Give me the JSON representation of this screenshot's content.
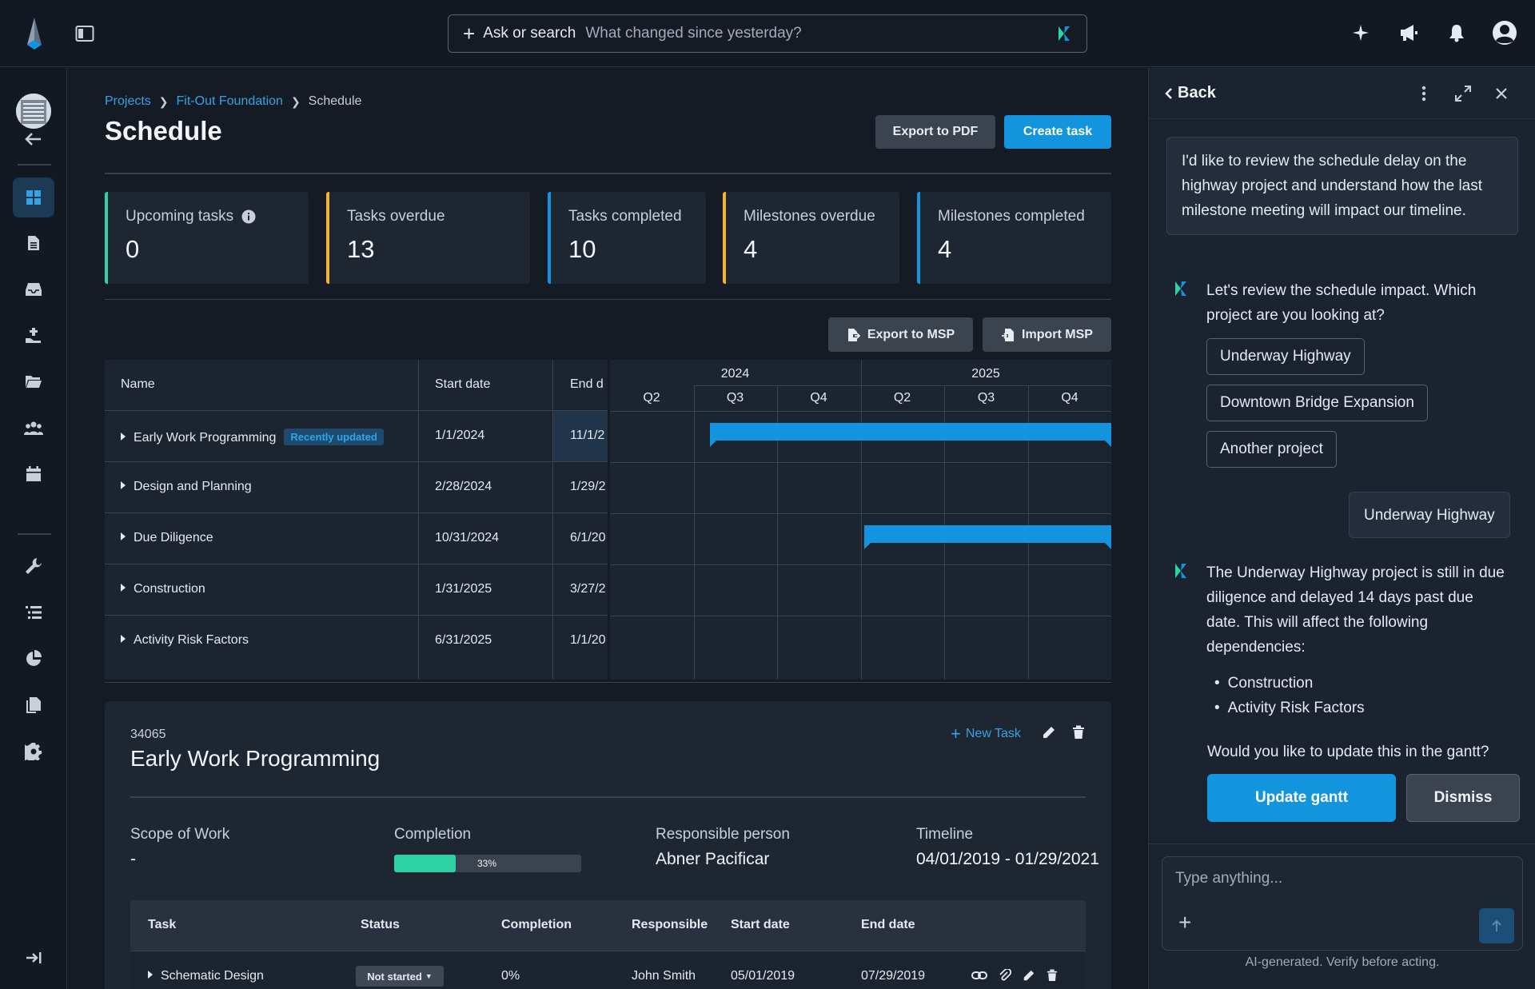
{
  "search": {
    "label": "Ask or search",
    "placeholder": "What changed since yesterday?"
  },
  "top_icons": [
    "sparkle-icon",
    "megaphone-icon",
    "bell-icon",
    "user-avatar-icon"
  ],
  "rail": {
    "items": [
      "back-arrow-icon",
      "dashboard-icon",
      "document-icon",
      "inbox-icon",
      "money-icon",
      "folder-icon",
      "team-icon",
      "calendar-icon",
      "wrench-icon",
      "list-icon",
      "pie-chart-icon",
      "files-icon",
      "gear-icon",
      "collapse-icon"
    ]
  },
  "breadcrumb": {
    "items": [
      "Projects",
      "Fit-Out Foundation"
    ],
    "current": "Schedule"
  },
  "page": {
    "title": "Schedule",
    "export_pdf": "Export to PDF",
    "create_task": "Create task"
  },
  "stats": [
    {
      "label": "Upcoming tasks",
      "value": "0",
      "color": "#2ed3a3",
      "info": true
    },
    {
      "label": "Tasks overdue",
      "value": "13",
      "color": "#f2b233"
    },
    {
      "label": "Tasks completed",
      "value": "10",
      "color": "#1294df"
    },
    {
      "label": "Milestones overdue",
      "value": "4",
      "color": "#f2b233"
    },
    {
      "label": "Milestones completed",
      "value": "4",
      "color": "#1294df"
    }
  ],
  "msp": {
    "export": "Export to MSP",
    "import": "Import MSP"
  },
  "gantt": {
    "columns": {
      "name": "Name",
      "start": "Start date",
      "end": "End d"
    },
    "years": [
      "2024",
      "2025"
    ],
    "quarters": [
      "Q2",
      "Q3",
      "Q4",
      "Q2",
      "Q3",
      "Q4"
    ],
    "rows": [
      {
        "name": "Early Work Programming",
        "badge": "Recently updated",
        "start": "1/1/2024",
        "end": "11/1/2",
        "bar": {
          "from_quarter": 1.2,
          "to_quarter": 6.0
        }
      },
      {
        "name": "Design and Planning",
        "start": "2/28/2024",
        "end": "1/29/2"
      },
      {
        "name": "Due Diligence",
        "start": "10/31/2024",
        "end": "6/1/20",
        "bar": {
          "from_quarter": 3.04,
          "to_quarter": 6.0
        }
      },
      {
        "name": "Construction",
        "start": "1/31/2025",
        "end": "3/27/2"
      },
      {
        "name": "Activity Risk Factors",
        "start": "6/31/2025",
        "end": "1/1/20"
      }
    ]
  },
  "detail": {
    "id": "34065",
    "title": "Early Work Programming",
    "new_task": "New Task",
    "fields": {
      "scope_label": "Scope of Work",
      "scope_value": "-",
      "completion_label": "Completion",
      "completion_pct": 33,
      "completion_text": "33%",
      "responsible_label": "Responsible person",
      "responsible_value": "Abner Pacificar",
      "timeline_label": "Timeline",
      "timeline_value": "04/01/2019 - 01/29/2021"
    },
    "table": {
      "headers": [
        "Task",
        "Status",
        "Completion",
        "Responsible",
        "Start date",
        "End date"
      ],
      "rows": [
        {
          "task": "Schematic Design",
          "status": "Not started",
          "completion": "0%",
          "responsible": "John Smith",
          "start": "05/01/2019",
          "end": "07/29/2019"
        }
      ]
    }
  },
  "assistant": {
    "back": "Back",
    "user_msg_1": "I'd like to review the schedule delay on the highway project and understand how the last milestone meeting will impact our timeline.",
    "ai_msg_1": "Let's review the schedule impact. Which project are you looking at?",
    "options": [
      "Underway Highway",
      "Downtown Bridge Expansion",
      "Another project"
    ],
    "user_msg_2": "Underway Highway",
    "ai_msg_2": "The Underway Highway project is still in due diligence and delayed 14 days past due date. This will affect the following dependencies:",
    "bullets": [
      "Construction",
      "Activity Risk Factors"
    ],
    "question": "Would you like to update this in the gantt?",
    "update_btn": "Update gantt",
    "dismiss_btn": "Dismiss",
    "input_placeholder": "Type anything...",
    "disclaimer": "AI-generated. Verify before acting."
  }
}
